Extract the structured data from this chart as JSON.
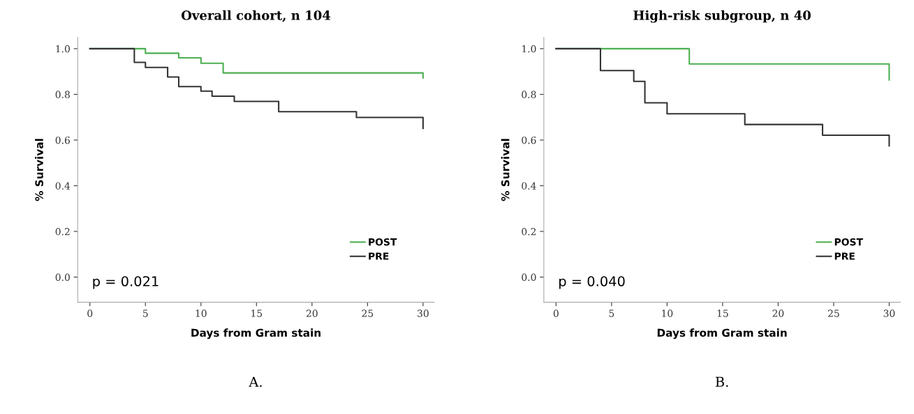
{
  "chart_data": [
    {
      "type": "step",
      "title": "Overall cohort, n 104",
      "xlabel": "Days from Gram stain",
      "ylabel": "% Survival",
      "xlim": [
        -1.1,
        31
      ],
      "ylim": [
        -0.11,
        1.05
      ],
      "xticks": [
        0,
        5,
        10,
        15,
        20,
        25,
        30
      ],
      "yticks": [
        {
          "value": 0,
          "label": "0.0"
        },
        {
          "value": 0.2,
          "label": "0.2"
        },
        {
          "value": 0.4,
          "label": "0.4"
        },
        {
          "value": 0.6,
          "label": "0.6"
        },
        {
          "value": 0.8,
          "label": "0.8"
        },
        {
          "value": 1,
          "label": "1.0"
        }
      ],
      "grid": false,
      "legend": "bottom right",
      "line_style": "solid",
      "marker": "none",
      "series": [
        {
          "name": "POST",
          "color": "#4caf50",
          "x": [
            0,
            5,
            8,
            10,
            12,
            30,
            30
          ],
          "values": [
            1.0,
            0.98,
            0.96,
            0.936,
            0.894,
            0.894,
            0.872
          ]
        },
        {
          "name": "PRE",
          "color": "#333333",
          "x": [
            0,
            4,
            5,
            7,
            8,
            10,
            11,
            13,
            17,
            24,
            30,
            30
          ],
          "values": [
            1.0,
            0.94,
            0.918,
            0.876,
            0.834,
            0.814,
            0.792,
            0.769,
            0.724,
            0.699,
            0.699,
            0.651
          ]
        }
      ],
      "annotations": [
        "p = 0.021",
        "A."
      ]
    },
    {
      "type": "step",
      "title": "High-risk subgroup, n 40",
      "xlabel": "Days from Gram stain",
      "ylabel": "% Survival",
      "xlim": [
        -1.1,
        31
      ],
      "ylim": [
        -0.11,
        1.05
      ],
      "xticks": [
        0,
        5,
        10,
        15,
        20,
        25,
        30
      ],
      "yticks": [
        {
          "value": 0,
          "label": "0.0"
        },
        {
          "value": 0.2,
          "label": "0.2"
        },
        {
          "value": 0.4,
          "label": "0.4"
        },
        {
          "value": 0.6,
          "label": "0.6"
        },
        {
          "value": 0.8,
          "label": "0.8"
        },
        {
          "value": 1,
          "label": "1.0"
        }
      ],
      "grid": false,
      "legend": "bottom right",
      "line_style": "solid",
      "marker": "none",
      "series": [
        {
          "name": "POST",
          "color": "#4caf50",
          "x": [
            0,
            12,
            30,
            30
          ],
          "values": [
            1.0,
            0.933,
            0.933,
            0.863
          ]
        },
        {
          "name": "PRE",
          "color": "#333333",
          "x": [
            0,
            4,
            7,
            8,
            10,
            17,
            24,
            30,
            30
          ],
          "values": [
            1.0,
            0.904,
            0.857,
            0.763,
            0.715,
            0.668,
            0.621,
            0.621,
            0.575
          ]
        }
      ],
      "annotations": [
        "p = 0.040",
        "B."
      ]
    }
  ]
}
